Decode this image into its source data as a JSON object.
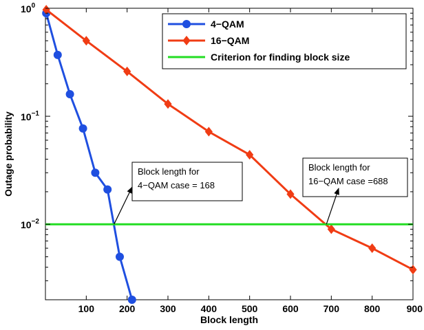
{
  "chart_data": {
    "type": "line",
    "x_scale": "linear",
    "y_scale": "log",
    "xlim": [
      0,
      900
    ],
    "ylim": [
      0.002,
      1
    ],
    "xlabel": "Block length",
    "ylabel": "Outage probability",
    "grid": false,
    "legend_position": "top-right",
    "x_ticks": [
      100,
      200,
      300,
      400,
      500,
      600,
      700,
      800,
      900
    ],
    "x_tick_labels": [
      "100",
      "200",
      "300",
      "400",
      "500",
      "600",
      "700",
      "800",
      "900"
    ],
    "y_ticks": [
      1,
      0.1,
      0.01
    ],
    "y_tick_labels": [
      {
        "base": "10",
        "exp": "0"
      },
      {
        "base": "10",
        "exp": "−1"
      },
      {
        "base": "10",
        "exp": "−2"
      }
    ],
    "series": [
      {
        "name": "4−QAM",
        "color": "#1f4fe0",
        "marker": "circle",
        "x": [
          2,
          30,
          60,
          92,
          122,
          152,
          182,
          212
        ],
        "y": [
          0.9,
          0.37,
          0.16,
          0.077,
          0.03,
          0.021,
          0.005,
          0.002
        ]
      },
      {
        "name": "16−QAM",
        "color": "#f03c14",
        "marker": "diamond",
        "x": [
          2,
          100,
          200,
          300,
          400,
          500,
          600,
          700,
          800,
          900
        ],
        "y": [
          0.97,
          0.5,
          0.26,
          0.13,
          0.072,
          0.044,
          0.019,
          0.009,
          0.006,
          0.0038
        ]
      },
      {
        "name": "Criterion for finding block size",
        "color": "#22dd22",
        "marker": "none",
        "x": [
          0,
          900
        ],
        "y": [
          0.01,
          0.01
        ]
      }
    ],
    "annotations": [
      {
        "lines": [
          "Block length for",
          "4−QAM case = 168"
        ],
        "arrow_to": {
          "x": 168,
          "y": 0.01
        }
      },
      {
        "lines": [
          "Block length for",
          "16−QAM case =688"
        ],
        "arrow_to": {
          "x": 688,
          "y": 0.01
        }
      }
    ]
  }
}
